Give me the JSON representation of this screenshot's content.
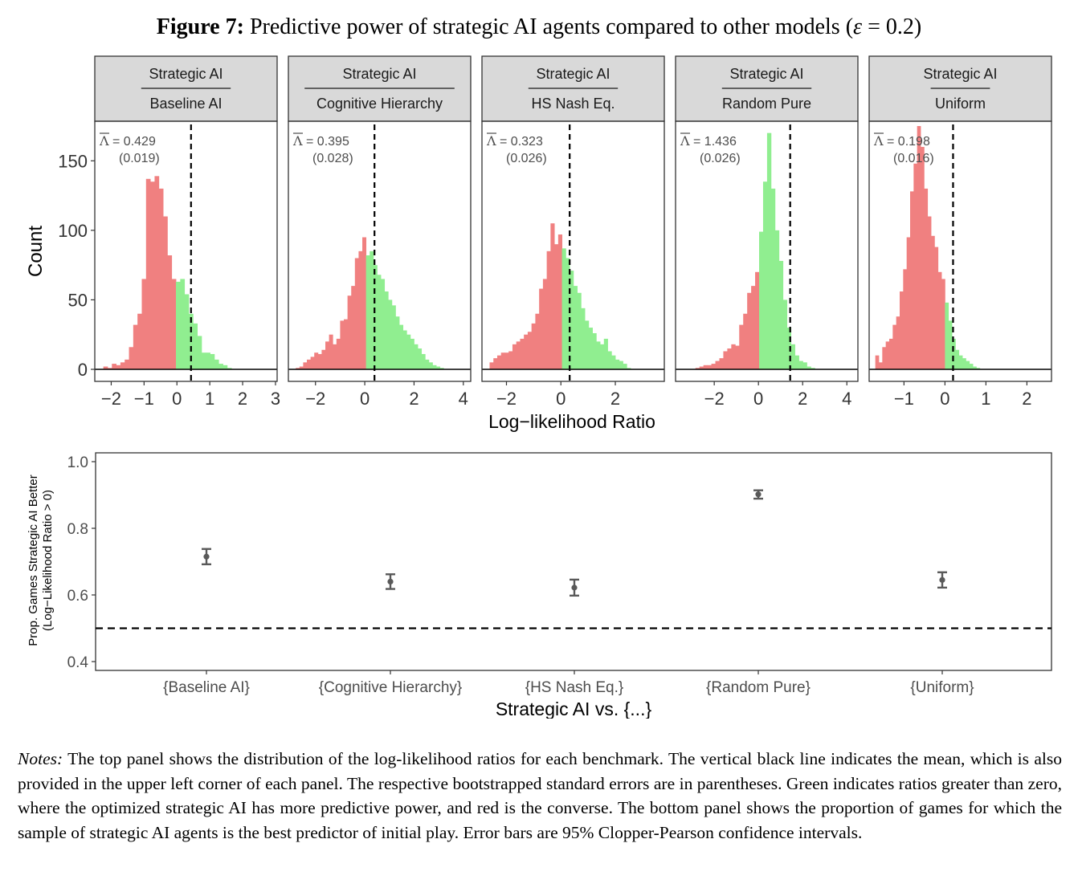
{
  "figure": {
    "title_bold": "Figure 7:",
    "title_text_pre": "Predictive power of strategic AI agents compared to other models (",
    "title_epsilon": "ε",
    "title_text_post": " = 0.2)"
  },
  "colors": {
    "negative": "#F08080",
    "positive": "#90EE90",
    "strip_fill": "#D9D9D9",
    "point": "#595959"
  },
  "chart_data": [
    {
      "type": "bar",
      "subtype": "histogram_facets",
      "xlabel": "Log−likelihood Ratio",
      "ylabel": "Count",
      "ylim": [
        0,
        175
      ],
      "yticks": [
        0,
        50,
        100,
        150
      ],
      "grid": false,
      "panels": [
        {
          "strip_top": "Strategic AI",
          "strip_bottom": "Baseline AI",
          "mean_symbol": "Λ",
          "mean_text": " = 0.429",
          "se_text": "(0.019)",
          "mean": 0.429,
          "xlim": [
            -2.5,
            3.05
          ],
          "xticks": [
            "−2",
            "−1",
            "0",
            "1",
            "2",
            "3"
          ],
          "xtick_values": [
            -2,
            -1,
            0,
            1,
            2,
            3
          ],
          "bin_start": -2.5,
          "bin_width": 0.13,
          "counts": [
            0,
            0,
            2,
            1,
            4,
            3,
            5,
            7,
            16,
            32,
            40,
            65,
            137,
            135,
            139,
            130,
            110,
            82,
            65,
            63,
            65,
            54,
            40,
            33,
            24,
            12,
            12,
            11,
            7,
            4,
            3,
            1,
            0
          ]
        },
        {
          "strip_top": "Strategic AI",
          "strip_bottom": "Cognitive Hierarchy",
          "mean_symbol": "Λ",
          "mean_text": " = 0.395",
          "se_text": "(0.028)",
          "mean": 0.395,
          "xlim": [
            -3.1,
            4.3
          ],
          "xticks": [
            "−2",
            "0",
            "2",
            "4"
          ],
          "xtick_values": [
            -2,
            0,
            2,
            4
          ],
          "bin_start": -3.1,
          "bin_width": 0.15,
          "counts": [
            0,
            0,
            1,
            2,
            5,
            7,
            9,
            12,
            11,
            14,
            20,
            25,
            18,
            22,
            35,
            36,
            53,
            60,
            80,
            85,
            95,
            82,
            85,
            75,
            68,
            65,
            56,
            50,
            46,
            38,
            32,
            28,
            25,
            22,
            18,
            15,
            11,
            7,
            5,
            3,
            2,
            1,
            0,
            0,
            0,
            0,
            0,
            0,
            0,
            0
          ]
        },
        {
          "strip_top": "Strategic AI",
          "strip_bottom": "HS Nash Eq.",
          "mean_symbol": "Λ",
          "mean_text": " = 0.323",
          "se_text": "(0.026)",
          "mean": 0.323,
          "xlim": [
            -2.9,
            3.8
          ],
          "xticks": [
            "−2",
            "0",
            "2"
          ],
          "xtick_values": [
            -2,
            0,
            2
          ],
          "bin_start": -2.9,
          "bin_width": 0.14,
          "counts": [
            0,
            0,
            5,
            8,
            10,
            12,
            12,
            13,
            18,
            20,
            22,
            25,
            27,
            33,
            40,
            58,
            65,
            85,
            105,
            90,
            97,
            87,
            80,
            71,
            60,
            55,
            44,
            35,
            30,
            26,
            20,
            18,
            22,
            13,
            10,
            7,
            6,
            4,
            1,
            0,
            0,
            0,
            0,
            0,
            0,
            0,
            0,
            0
          ]
        },
        {
          "strip_top": "Strategic AI",
          "strip_bottom": "Random Pure",
          "mean_symbol": "Λ",
          "mean_text": " = 1.436",
          "se_text": "(0.026)",
          "mean": 1.436,
          "xlim": [
            -3.75,
            4.5
          ],
          "xticks": [
            "−2",
            "0",
            "2",
            "4"
          ],
          "xtick_values": [
            -2,
            0,
            2,
            4
          ],
          "bin_start": -3.75,
          "bin_width": 0.18,
          "counts": [
            0,
            0,
            0,
            0,
            0,
            1,
            2,
            3,
            3,
            4,
            6,
            8,
            13,
            15,
            18,
            17,
            32,
            40,
            55,
            60,
            70,
            99,
            135,
            170,
            130,
            100,
            78,
            50,
            30,
            18,
            10,
            6,
            5,
            2,
            1,
            0,
            0,
            0,
            0,
            0,
            0,
            0,
            0,
            0,
            0,
            0
          ]
        },
        {
          "strip_top": "Strategic AI",
          "strip_bottom": "Uniform",
          "mean_symbol": "Λ",
          "mean_text": " = 0.198",
          "se_text": "(0.016)",
          "mean": 0.198,
          "xlim": [
            -1.85,
            2.6
          ],
          "xticks": [
            "−1",
            "0",
            "1",
            "2"
          ],
          "xtick_values": [
            -1,
            0,
            1,
            2
          ],
          "bin_start": -1.7,
          "bin_width": 0.085,
          "counts": [
            10,
            5,
            16,
            20,
            22,
            32,
            38,
            56,
            72,
            95,
            128,
            148,
            175,
            160,
            130,
            110,
            96,
            88,
            70,
            65,
            48,
            35,
            22,
            14,
            10,
            8,
            6,
            4,
            2,
            1,
            0,
            0,
            0,
            0,
            0,
            0,
            0,
            0,
            0,
            0,
            0,
            0,
            0,
            0,
            0,
            0,
            0,
            0,
            0,
            0,
            0,
            0,
            0
          ]
        }
      ]
    },
    {
      "type": "scatter",
      "subtype": "point_with_error_bars",
      "xlabel": "Strategic AI vs. {...}",
      "ylabel_line1": "Prop. Games Strategic AI Better",
      "ylabel_line2": "(Log−Likelihood Ratio > 0)",
      "ylim": [
        0.38,
        1.02
      ],
      "yticks": [
        "0.4",
        "0.6",
        "0.8",
        "1.0"
      ],
      "ytick_values": [
        0.4,
        0.6,
        0.8,
        1.0
      ],
      "reference_line": 0.5,
      "grid": false,
      "categories": [
        "{Baseline AI}",
        "{Cognitive Hierarchy}",
        "{HS Nash Eq.}",
        "{Random Pure}",
        "{Uniform}"
      ],
      "values": [
        0.715,
        0.64,
        0.622,
        0.902,
        0.645
      ],
      "ci_low": [
        0.692,
        0.618,
        0.598,
        0.889,
        0.622
      ],
      "ci_high": [
        0.738,
        0.662,
        0.646,
        0.914,
        0.668
      ]
    }
  ],
  "notes": {
    "label": "Notes:",
    "text": " The top panel shows the distribution of the log-likelihood ratios for each benchmark. The vertical black line indicates the mean, which is also provided in the upper left corner of each panel. The respective bootstrapped standard errors are in parentheses. Green indicates ratios greater than zero, where the optimized strategic AI has more predictive power, and red is the converse. The bottom panel shows the proportion of games for which the sample of strategic AI agents is the best predictor of initial play. Error bars are 95% Clopper-Pearson confidence intervals."
  }
}
